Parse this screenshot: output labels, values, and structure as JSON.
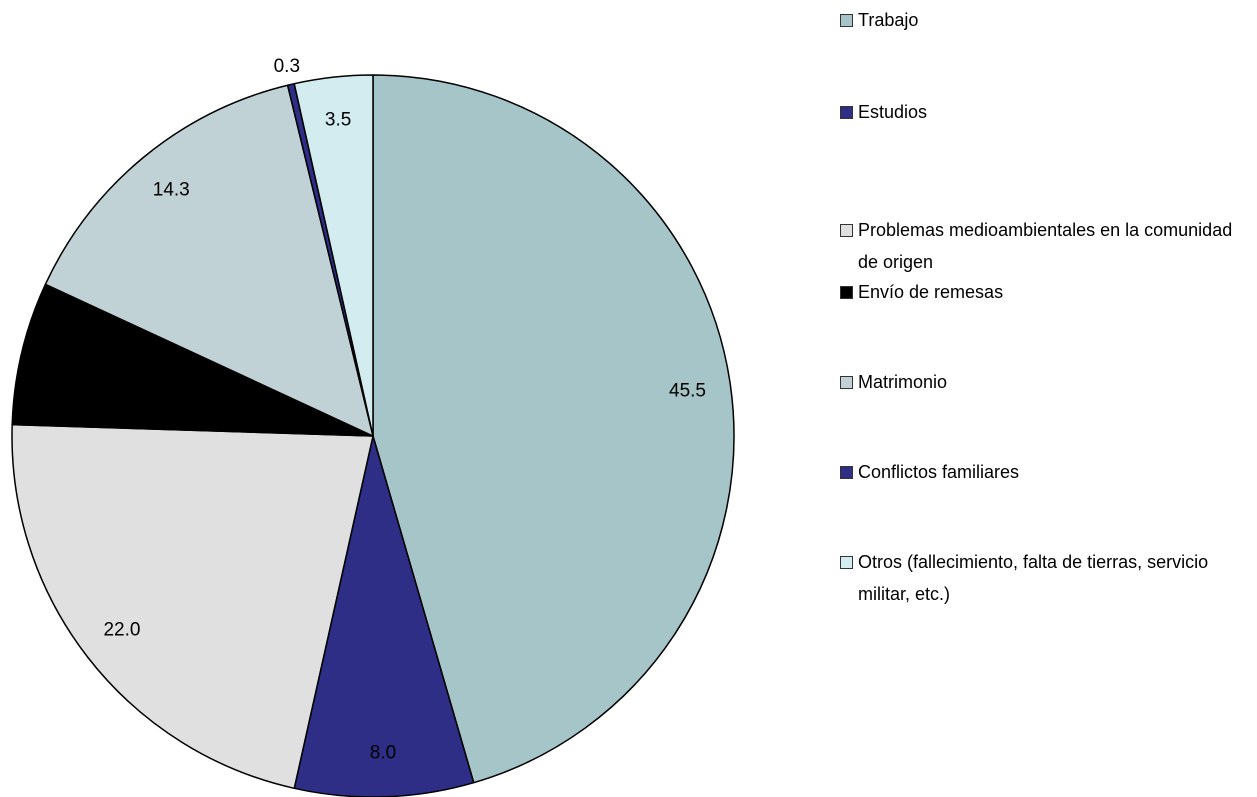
{
  "chart_data": {
    "type": "pie",
    "categories": [
      "Trabajo",
      "Estudios",
      "Problemas medioambientales en la comunidad de origen",
      "Envío de remesas",
      "Matrimonio",
      "Conflictos familiares",
      "Otros (fallecimiento, falta de tierras, servicio militar, etc.)"
    ],
    "values": [
      45.5,
      8.0,
      22.0,
      6.4,
      14.3,
      0.3,
      3.5
    ],
    "value_labels": [
      "45.5",
      "8.0",
      "22.0",
      null,
      "14.3",
      "0.3",
      "3.5"
    ],
    "colors": [
      "#a6c5c8",
      "#2e2e87",
      "#e0e0e0",
      "#000000",
      "#c0d2d5",
      "#2e2e87",
      "#d2ecef"
    ],
    "legend": "right"
  }
}
